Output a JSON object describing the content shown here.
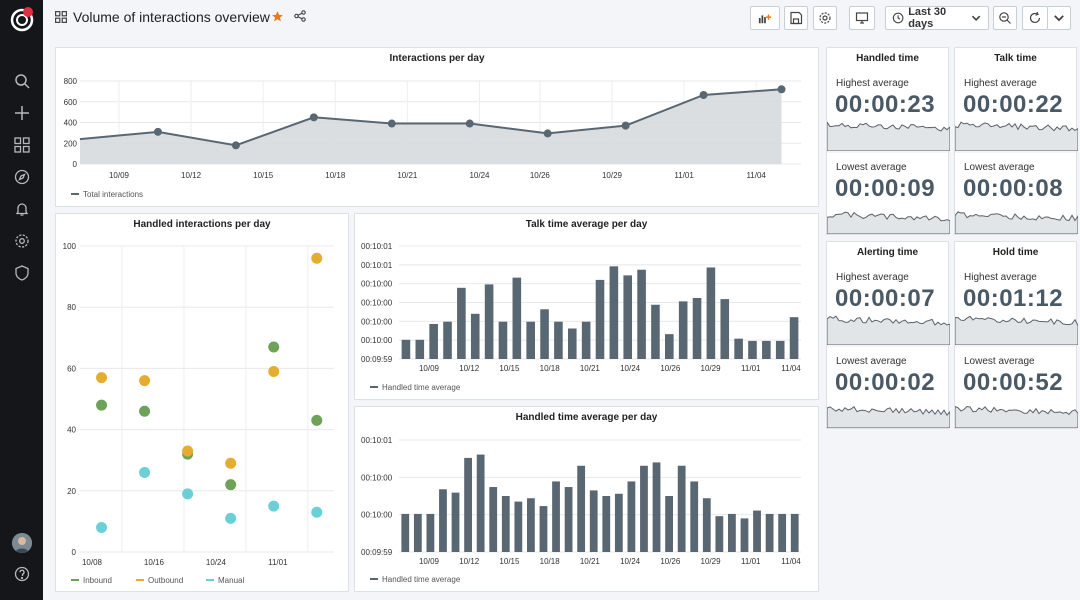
{
  "dashboard": {
    "title": "Volume of interactions overview",
    "time_range": "Last 30 days",
    "accent": "#eb7b18"
  },
  "sidebar_icons": [
    "search-icon",
    "plus-icon",
    "dashboards-icon",
    "explore-icon",
    "alerting-icon",
    "configuration-icon",
    "shield-icon",
    "help-icon"
  ],
  "panels": {
    "interactions_per_day": {
      "title": "Interactions per day"
    },
    "handled_per_day": {
      "title": "Handled interactions per day"
    },
    "talk_avg": {
      "title": "Talk time average per day"
    },
    "handled_avg": {
      "title": "Handled time average per day"
    }
  },
  "stats": [
    {
      "title": "Handled time",
      "highest_label": "Highest average",
      "highest": "00:00:23",
      "lowest_label": "Lowest average",
      "lowest": "00:00:09"
    },
    {
      "title": "Talk time",
      "highest_label": "Highest average",
      "highest": "00:00:22",
      "lowest_label": "Lowest average",
      "lowest": "00:00:08"
    },
    {
      "title": "Alerting time",
      "highest_label": "Highest average",
      "highest": "00:00:07",
      "lowest_label": "Lowest average",
      "lowest": "00:00:02"
    },
    {
      "title": "Hold time",
      "highest_label": "Highest average",
      "highest": "00:01:12",
      "lowest_label": "Lowest average",
      "lowest": "00:00:52"
    }
  ],
  "chart_data": [
    {
      "id": "interactions",
      "type": "area",
      "title": "Interactions per day",
      "x_ticks": [
        "10/09",
        "10/12",
        "10/15",
        "10/18",
        "10/21",
        "10/24",
        "10/26",
        "10/29",
        "11/01",
        "11/04"
      ],
      "y_ticks": [
        "800",
        "600",
        "400",
        "200",
        "0"
      ],
      "ylim": [
        0,
        800
      ],
      "legend": [
        "Total interactions"
      ],
      "color": "#596773",
      "x": [
        0,
        4,
        8,
        12,
        16,
        20,
        24,
        28,
        32,
        36
      ],
      "values": [
        240,
        310,
        180,
        450,
        390,
        390,
        295,
        370,
        665,
        720
      ]
    },
    {
      "id": "handled",
      "type": "scatter",
      "title": "Handled interactions per day",
      "x_ticks": [
        "10/08",
        "10/16",
        "10/24",
        "11/01"
      ],
      "y_ticks": [
        "100",
        "80",
        "60",
        "40",
        "20",
        "0"
      ],
      "ylim": [
        0,
        100
      ],
      "legend": [
        "Inbound",
        "Outbound",
        "Manual"
      ],
      "series": [
        {
          "name": "Inbound",
          "color": "#6ea259",
          "points": [
            [
              1,
              48
            ],
            [
              3,
              46
            ],
            [
              5,
              32
            ],
            [
              7,
              22
            ],
            [
              9,
              67
            ],
            [
              11,
              43
            ]
          ]
        },
        {
          "name": "Outbound",
          "color": "#e5ac2f",
          "points": [
            [
              1,
              57
            ],
            [
              3,
              56
            ],
            [
              5,
              33
            ],
            [
              7,
              29
            ],
            [
              9,
              59
            ],
            [
              11,
              96
            ]
          ]
        },
        {
          "name": "Manual",
          "color": "#6ccfd8",
          "points": [
            [
              1,
              8
            ],
            [
              3,
              26
            ],
            [
              5,
              19
            ],
            [
              7,
              11
            ],
            [
              9,
              15
            ],
            [
              11,
              13
            ]
          ]
        }
      ]
    },
    {
      "id": "talk",
      "type": "bar",
      "title": "Talk time average per day",
      "x_ticks": [
        "10/09",
        "10/12",
        "10/15",
        "10/18",
        "10/21",
        "10/24",
        "10/26",
        "10/29",
        "11/01",
        "11/04"
      ],
      "y_ticks": [
        "00:10:01",
        "00:10:01",
        "00:10:00",
        "00:10:00",
        "00:10:00",
        "00:10:00",
        "00:09:59"
      ],
      "legend": [
        "Handled time average"
      ],
      "color": "#596773",
      "values": [
        0.17,
        0.17,
        0.31,
        0.33,
        0.63,
        0.4,
        0.66,
        0.33,
        0.72,
        0.33,
        0.44,
        0.33,
        0.27,
        0.33,
        0.7,
        0.82,
        0.74,
        0.79,
        0.48,
        0.22,
        0.51,
        0.54,
        0.81,
        0.53,
        0.18,
        0.16,
        0.16,
        0.16,
        0.37
      ]
    },
    {
      "id": "handled_time",
      "type": "bar",
      "title": "Handled time average per day",
      "x_ticks": [
        "10/09",
        "10/12",
        "10/15",
        "10/18",
        "10/21",
        "10/24",
        "10/26",
        "10/29",
        "11/01",
        "11/04"
      ],
      "y_ticks": [
        "00:10:01",
        "00:10:00",
        "00:10:00",
        "00:09:59"
      ],
      "legend": [
        "Handled time average"
      ],
      "color": "#596773",
      "values": [
        0.34,
        0.34,
        0.34,
        0.56,
        0.53,
        0.84,
        0.87,
        0.58,
        0.5,
        0.45,
        0.48,
        0.41,
        0.63,
        0.58,
        0.77,
        0.55,
        0.5,
        0.52,
        0.63,
        0.77,
        0.8,
        0.5,
        0.77,
        0.63,
        0.48,
        0.32,
        0.34,
        0.3,
        0.37,
        0.34,
        0.34,
        0.34
      ]
    }
  ]
}
